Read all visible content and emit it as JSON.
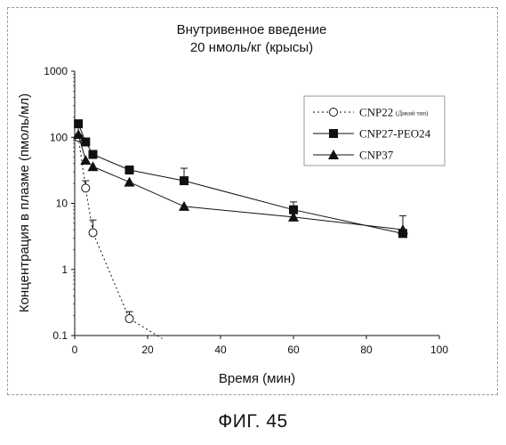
{
  "chart_data": {
    "type": "line",
    "title_lines": [
      "Внутривенное введение",
      "20 нмоль/кг (крысы)"
    ],
    "xlabel": "Время (мин)",
    "ylabel": "Концентрация в плазме (пмоль/мл)",
    "xlim": [
      0,
      100
    ],
    "ylim": [
      0.1,
      1000
    ],
    "yscale": "log",
    "xticks": [
      0,
      20,
      40,
      60,
      80,
      100
    ],
    "yticks": [
      0.1,
      1,
      10,
      100,
      1000
    ],
    "ytick_labels": [
      "0.1",
      "1",
      "10",
      "100",
      "1000"
    ],
    "grid": false,
    "legend_position": "top-right",
    "series": [
      {
        "name": "CNP22",
        "name_note": "(Дикий тип)",
        "marker": "open-circle",
        "line": "dotted",
        "x": [
          1,
          3,
          5,
          15
        ],
        "y": [
          100,
          17,
          3.6,
          0.18
        ],
        "err": [
          5,
          5,
          2,
          0.05
        ],
        "tail_x": 24,
        "tail_y": 0.09
      },
      {
        "name": "CNP27-PEO24",
        "marker": "filled-square",
        "line": "solid",
        "x": [
          1,
          3,
          5,
          15,
          30,
          60,
          90
        ],
        "y": [
          160,
          85,
          55,
          32,
          22,
          8,
          3.5
        ],
        "err": [
          0,
          0,
          0,
          0,
          12,
          2.5,
          0
        ]
      },
      {
        "name": "CNP37",
        "marker": "filled-triangle",
        "line": "solid",
        "x": [
          1,
          3,
          5,
          15,
          30,
          60,
          90
        ],
        "y": [
          110,
          45,
          36,
          21,
          9,
          6.2,
          4
        ],
        "err": [
          40,
          0,
          0,
          0,
          0,
          0,
          2.5
        ]
      }
    ]
  },
  "caption": "ФИГ. 45"
}
